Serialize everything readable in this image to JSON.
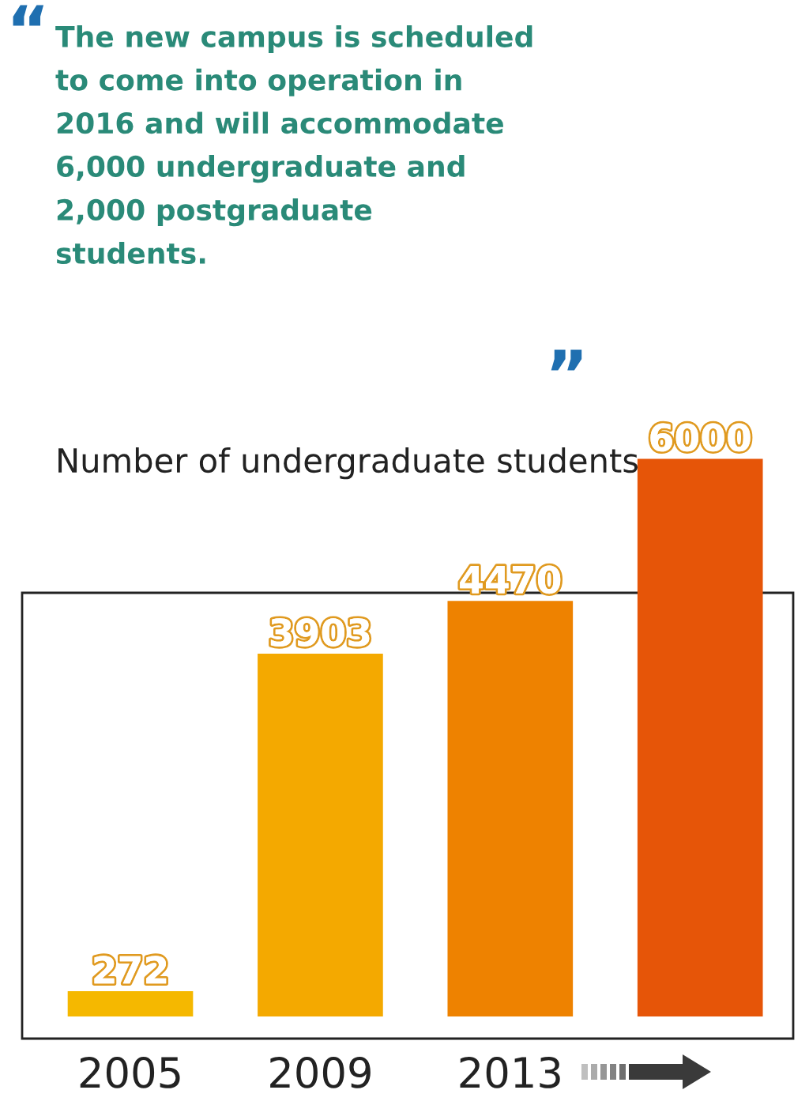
{
  "chart_data": {
    "type": "bar",
    "title": "Number of undergraduate students",
    "categories": [
      "2005",
      "2009",
      "2013",
      null
    ],
    "values": [
      272,
      3903,
      4470,
      6000
    ],
    "colors": [
      "#f5b800",
      "#f4a900",
      "#ee8200",
      "#e65508"
    ],
    "data_labels": true,
    "annotations": [
      "“",
      "The new campus is scheduled\nto come into operation in\n2016 and will accommodate\n6,000 undergraduate and\n2,000 postgraduate\nstudents.",
      "”"
    ]
  }
}
